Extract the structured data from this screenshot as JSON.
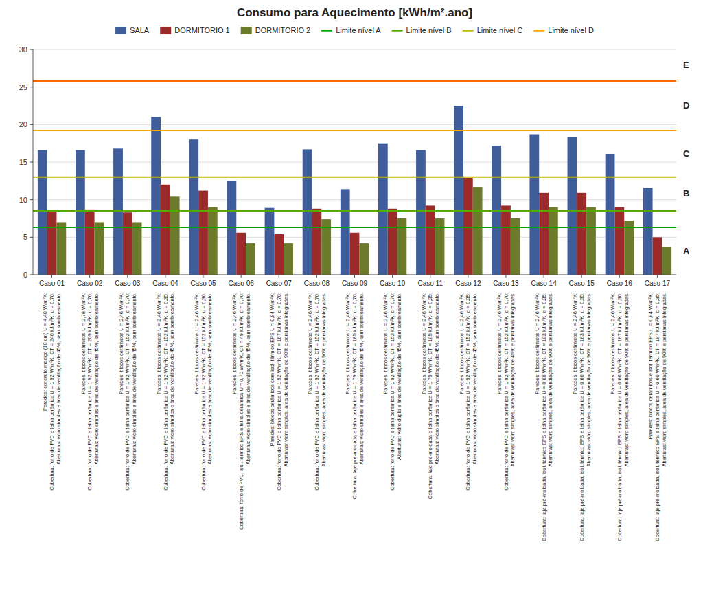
{
  "chart_data": {
    "type": "bar",
    "title": "Consumo para Aquecimento [kWh/m².ano]",
    "categories": [
      "Caso 01",
      "Caso 02",
      "Caso 03",
      "Caso 04",
      "Caso 05",
      "Caso 06",
      "Caso 07",
      "Caso 08",
      "Caso 09",
      "Caso 10",
      "Caso 11",
      "Caso 12",
      "Caso 13",
      "Caso 14",
      "Caso 15",
      "Caso 16",
      "Caso 17"
    ],
    "series": [
      {
        "name": "SALA",
        "color": "#3F5D9B",
        "values": [
          16.6,
          16.6,
          16.8,
          21.0,
          18.0,
          12.5,
          8.9,
          16.7,
          11.4,
          17.5,
          16.6,
          22.5,
          17.2,
          18.7,
          18.3,
          16.1,
          11.6
        ]
      },
      {
        "name": "DORMITORIO 1",
        "color": "#9B2B2B",
        "values": [
          8.6,
          8.7,
          8.3,
          12.0,
          11.2,
          5.6,
          5.4,
          8.8,
          5.6,
          8.8,
          9.2,
          12.9,
          9.2,
          10.9,
          10.9,
          9.0,
          5.0
        ]
      },
      {
        "name": "DORMITORIO 2",
        "color": "#6B7B2B",
        "values": [
          7.0,
          7.0,
          7.0,
          10.4,
          9.0,
          4.2,
          4.2,
          7.4,
          4.2,
          7.5,
          7.5,
          11.7,
          7.5,
          9.0,
          9.0,
          7.2,
          3.7
        ]
      }
    ],
    "reference_lines": [
      {
        "name": "Limite nível A",
        "value": 6.3,
        "color": "#00A800",
        "zone": "A"
      },
      {
        "name": "Limite nível B",
        "value": 8.5,
        "color": "#55AA00",
        "zone": "B"
      },
      {
        "name": "Limite nível C",
        "value": 13.0,
        "color": "#BBBB00",
        "zone": "C"
      },
      {
        "name": "Limite nível D",
        "value": 19.2,
        "color": "#FFA500",
        "zone": "D"
      },
      {
        "value": 25.8,
        "color": "#FF6600",
        "zone": "E"
      }
    ],
    "descriptions": [
      "Paredes: concreto maçiço (10 cm) U = 4,40 W/m²K;\nCobertura: forro de PVC e telha cerâmica U = 1,92 W/m²K, CT = 240 kJ/m²K, α = 0,70;\nAberturas: vidro simples e área de ventilação de 45%, sem sombreamento.",
      "Paredes: blocos cerâmicos U = 2,78 W/m²K;\nCobertura: forro de PVC e telha cerâmica U = 1,92 W/m²K, CT = 209 kJ/m²K, α = 0,70;\nAberturas: vidro simples e área de ventilação de 45%, sem sombreamento.",
      "Paredes: blocos cerâmicos U = 2,46 W/m²K;\nCobertura: forro de PVC e telha cerâmica U = 1,92 W/m²K, CT = 152 kJ/m²K, α = 0,70;\nAberturas: vidro simples e área de ventilação de 45%, sem sombreamento.",
      "Paredes: blocos cerâmicos U = 2,46 W/m²K;\nCobertura: forro de PVC e telha cerâmica U = 1,92 W/m²K, CT = 152 kJ/m²K, α = 0,35;\nAberturas: vidro simples e área de ventilação de 45%, sem sombreamento.",
      "Paredes: blocos cerâmicos U = 2,46 W/m²K;\nCobertura: forro de PVC e telha cerâmica U = 1,92 W/m²K, CT = 152 kJ/m²K, α = 0,30;\nAberturas: vidro simples e área de ventilação de 45%, sem sombreamento.",
      "Paredes: blocos cerâmicos U = 2,46 W/m²K;\nCobertura: forro de PVC, isol. térmico EPS e telha cerâmica U = 0,70 W/m²K, CT = 49 kJ/m²K, α = 0,70;\nAberturas: vidro simples e área de ventilação de 45%, sem sombreamento.",
      "Paredes: blocos cerâmicos com isol. térmico EPS U = 0,84 W/m²K;\nCobertura: forro de PVC e telha cerâmica U = 1,92 W/m²K, CT = 167 kJ/m²K, α = 0,70;\nAberturas: vidro simples, área de ventilação de 90% e persianas integradas.",
      "Paredes: blocos cerâmicos U = 2,46 W/m²K;\nCobertura: forro de PVC e telha cerâmica U = 1,92 W/m²K, CT = 152 kJ/m²K, α = 0,70;\nAberturas: vidro simples, área de ventilação de 90% e persianas integradas.",
      "Paredes: blocos cerâmicos U = 2,46 W/m²K;\nCobertura: laje pré-moldada e telha cerâmica U = 1,79 W/m²K, CT = 185 kJ/m²K, α = 0,70;\nAberturas: vidro simples e área de ventilação de 45%, sem sombreamento.",
      "Paredes: blocos cerâmicos U = 2,46 W/m²K;\nCobertura: forro de PVC e telha cerâmica U = 1,92 W/m²K, CT = 152 kJ/m²K, α = 0,70;\nAberturas: vidro duplo e área de ventilação de 45%, sem sombreamento.",
      "Paredes: blocos cerâmicos U = 2,46 W/m²K;\nCobertura: laje pré-moldada e telha cerâmica U = 1,79 W/m²K, CT = 185 kJ/m²K, α = 0,35;\nAberturas: vidro simples e área de ventilação de 45%, sem sombreamento.",
      "Paredes: blocos cerâmicos U = 2,46 W/m²K;\nCobertura: forro de PVC e telha cerâmica U = 1,92 W/m²K, CT = 152 kJ/m²K, α = 0,35;\nAberturas: vidro simples e área de ventilação de 45%, sem sombreamento.",
      "Paredes: blocos cerâmicos U = 2,46 W/m²K;\nCobertura: forro de PVC e telha cerâmica U = 1,92 W/m²K, CT = 152 kJ/m²K, α = 0,70;\nAberturas: vidro simples, área de ventilação de 45% e persianas integradas.",
      "Paredes: blocos cerâmicos U = 2,46 W/m²K;\nCobertura: laje pré-moldada, isol. térmico EPS e telha cerâmica U = 0,60 W/m²K, CT = 183 kJ/m²K, α = 0,35;\nAberturas: vidro simples, área de ventilação de 90% e persianas integradas.",
      "Paredes: blocos cerâmicos U = 2,46 W/m²K;\nCobertura: laje pré-moldada, isol. térmico EPS e telha cerâmica U = 0,60 W/m²K, CT = 183 kJ/m²K, α = 0,35;\nAberturas: vidro simples, área de ventilação de 90% e persianas integradas.",
      "Paredes: blocos cerâmicos U = 2,46 W/m²K;\nCobertura: laje pré-moldada, isol. térmico EPS e telha cerâmica U = 0,60 W/m²K, CT = 187 kJ/m²K, α = 0,30;\nAberturas: vidro simples, área de ventilação de 90% e persianas integradas.",
      "Paredes: blocos cerâmicos e isol. térmico EPS U = 0,84 W/m²K;\nCobertura: laje pré-moldada, isol. térmico EPS e telha cerâmica U = 0,60 W/m²K, CT = 187 kJ/m²K, α = 0,35;\nAberturas: vidro simples, área de ventilação de 90% e persianas integradas."
    ],
    "ylim": [
      0,
      30
    ],
    "yticks": [
      0,
      5,
      10,
      15,
      20,
      25,
      30
    ],
    "grid": true,
    "legend": "top"
  }
}
